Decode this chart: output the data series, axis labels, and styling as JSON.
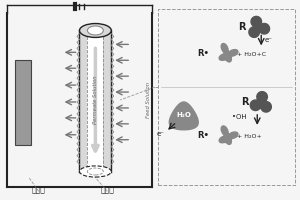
{
  "bg_color": "#f5f5f5",
  "gray_dark": "#555555",
  "gray_mid": "#888888",
  "gray_light": "#bbbbbb",
  "gray_lighter": "#e8e8e8",
  "gray_plate": "#999999",
  "text_color": "#222222",
  "dashed_color": "#999999",
  "arrow_color": "#777777",
  "left_label1": "催化层",
  "left_label2": "膜基体",
  "permeate_text": "Permeate Solution",
  "feed_text": "Feed Solution",
  "fig_width": 3.0,
  "fig_height": 2.0,
  "dpi": 100
}
